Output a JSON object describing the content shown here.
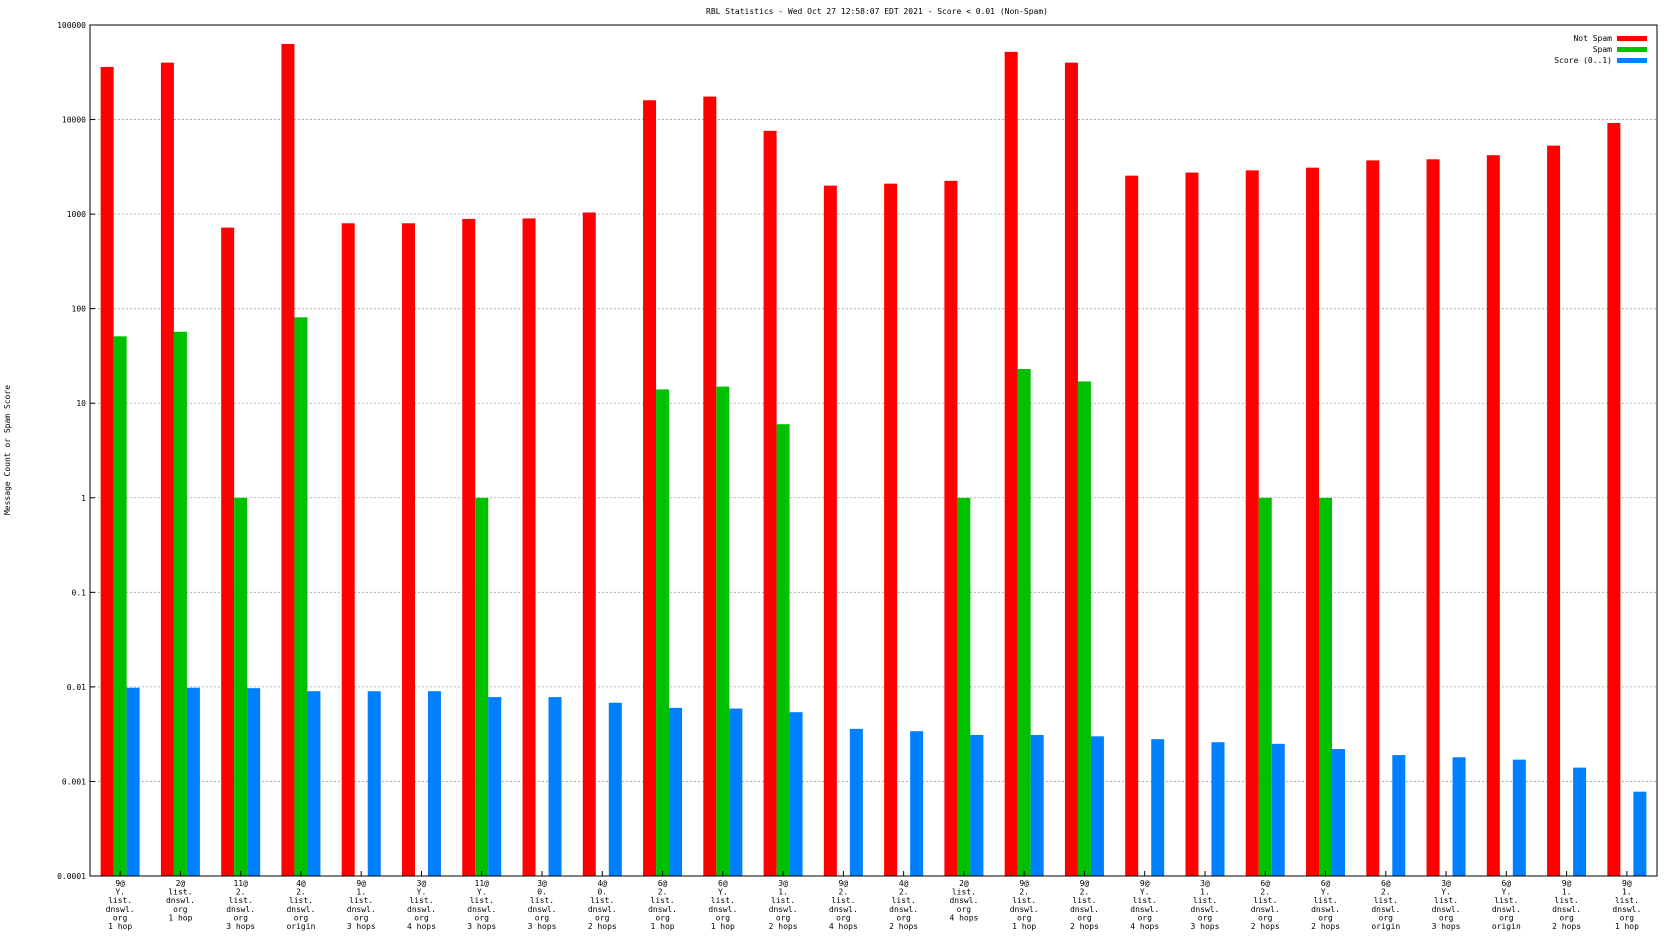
{
  "chart_data": {
    "type": "bar",
    "title": "RBL Statistics - Wed Oct 27 12:58:07 EDT 2021 - Score < 0.01 (Non-Spam)",
    "xlabel": "",
    "ylabel": "Message Count or Spam Score",
    "yscale": "log",
    "ylim": [
      0.0001,
      100000
    ],
    "yticks": [
      "0.0001",
      "0.001",
      "0.01",
      "0.1",
      "1",
      "10",
      "100",
      "1000",
      "10000",
      "100000"
    ],
    "grid": true,
    "legend_position": "top-right",
    "categories": [
      [
        "9@",
        "Y.",
        "list.",
        "dnswl.",
        "org",
        "1 hop"
      ],
      [
        "2@",
        "list.",
        "dnswl.",
        "org",
        "1 hop"
      ],
      [
        "11@",
        "2.",
        "list.",
        "dnswl.",
        "org",
        "3 hops"
      ],
      [
        "4@",
        "2.",
        "list.",
        "dnswl.",
        "org",
        "origin"
      ],
      [
        "9@",
        "1.",
        "list.",
        "dnswl.",
        "org",
        "3 hops"
      ],
      [
        "3@",
        "Y.",
        "list.",
        "dnswl.",
        "org",
        "4 hops"
      ],
      [
        "11@",
        "Y.",
        "list.",
        "dnswl.",
        "org",
        "3 hops"
      ],
      [
        "3@",
        "0.",
        "list.",
        "dnswl.",
        "org",
        "3 hops"
      ],
      [
        "4@",
        "0.",
        "list.",
        "dnswl.",
        "org",
        "2 hops"
      ],
      [
        "6@",
        "2.",
        "list.",
        "dnswl.",
        "org",
        "1 hop"
      ],
      [
        "6@",
        "Y.",
        "list.",
        "dnswl.",
        "org",
        "1 hop"
      ],
      [
        "3@",
        "1.",
        "list.",
        "dnswl.",
        "org",
        "2 hops"
      ],
      [
        "9@",
        "2.",
        "list.",
        "dnswl.",
        "org",
        "4 hops"
      ],
      [
        "4@",
        "2.",
        "list.",
        "dnswl.",
        "org",
        "2 hops"
      ],
      [
        "2@",
        "list.",
        "dnswl.",
        "org",
        "4 hops"
      ],
      [
        "9@",
        "2.",
        "list.",
        "dnswl.",
        "org",
        "1 hop"
      ],
      [
        "9@",
        "2.",
        "list.",
        "dnswl.",
        "org",
        "2 hops"
      ],
      [
        "9@",
        "Y.",
        "list.",
        "dnswl.",
        "org",
        "4 hops"
      ],
      [
        "3@",
        "1.",
        "list.",
        "dnswl.",
        "org",
        "3 hops"
      ],
      [
        "6@",
        "2.",
        "list.",
        "dnswl.",
        "org",
        "2 hops"
      ],
      [
        "6@",
        "Y.",
        "list.",
        "dnswl.",
        "org",
        "2 hops"
      ],
      [
        "6@",
        "2.",
        "list.",
        "dnswl.",
        "org",
        "origin"
      ],
      [
        "3@",
        "Y.",
        "list.",
        "dnswl.",
        "org",
        "3 hops"
      ],
      [
        "6@",
        "Y.",
        "list.",
        "dnswl.",
        "org",
        "origin"
      ],
      [
        "9@",
        "1.",
        "list.",
        "dnswl.",
        "org",
        "2 hops"
      ],
      [
        "9@",
        "1.",
        "list.",
        "dnswl.",
        "org",
        "1 hop"
      ]
    ],
    "series": [
      {
        "name": "Not Spam",
        "color": "#ff0000",
        "values": [
          36000,
          40000,
          720,
          63000,
          800,
          800,
          890,
          900,
          1040,
          16000,
          17500,
          7600,
          2000,
          2100,
          2250,
          52000,
          40000,
          2550,
          2750,
          2900,
          3100,
          3700,
          3800,
          4200,
          5300,
          9200
        ]
      },
      {
        "name": "Spam",
        "color": "#00c000",
        "values": [
          51,
          57,
          1,
          81,
          null,
          null,
          1,
          null,
          null,
          14,
          15,
          6,
          null,
          null,
          1,
          23,
          17,
          null,
          null,
          1,
          1,
          null,
          null,
          null,
          null,
          null
        ]
      },
      {
        "name": "Score (0..1)",
        "color": "#0080ff",
        "values": [
          0.0098,
          0.0098,
          0.0097,
          0.009,
          0.009,
          0.009,
          0.0078,
          0.0078,
          0.0068,
          0.006,
          0.0059,
          0.0054,
          0.0036,
          0.0034,
          0.0031,
          0.0031,
          0.003,
          0.0028,
          0.0026,
          0.0025,
          0.0022,
          0.0019,
          0.0018,
          0.0017,
          0.0014,
          0.00078
        ]
      }
    ]
  }
}
